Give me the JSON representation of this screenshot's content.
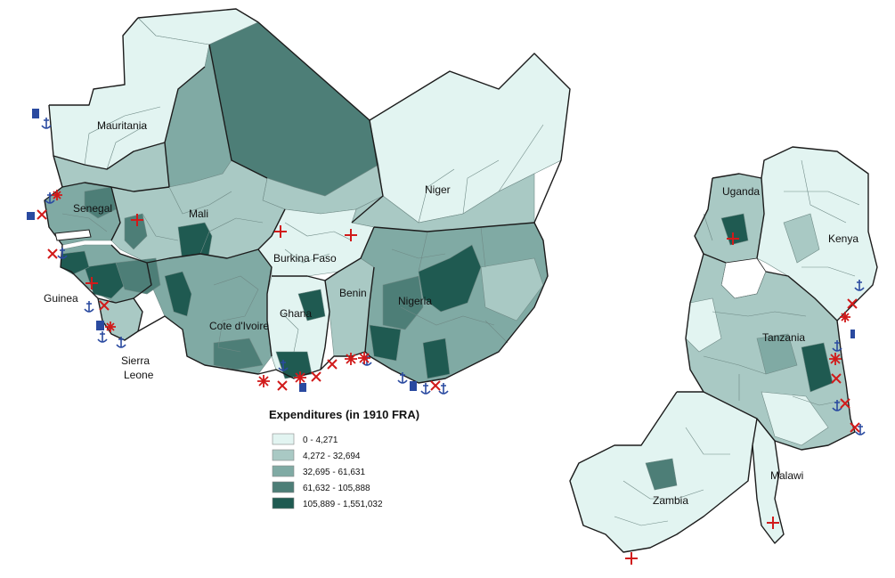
{
  "legend": {
    "title": "Expenditures (in 1910 FRA)",
    "classes": [
      {
        "label": "0 - 4,271",
        "color": "#e2f4f1"
      },
      {
        "label": "4,272 - 32,694",
        "color": "#a9c9c4"
      },
      {
        "label": "32,695 - 61,631",
        "color": "#80aaa4"
      },
      {
        "label": "61,632 - 105,888",
        "color": "#4d7e77"
      },
      {
        "label": "105,889 - 1,551,032",
        "color": "#1f5a51"
      }
    ]
  },
  "countries": {
    "mauritania": "Mauritania",
    "senegal": "Senegal",
    "mali": "Mali",
    "niger": "Niger",
    "guinea": "Guinea",
    "burkina_faso": "Burkina Faso",
    "benin": "Benin",
    "nigeria": "Nigeria",
    "cote_divoire": "Cote d'Ivoire",
    "ghana": "Ghana",
    "sierra": "Sierra",
    "leone": "Leone",
    "uganda": "Uganda",
    "kenya": "Kenya",
    "tanzania": "Tanzania",
    "malawi": "Malawi",
    "zambia": "Zambia"
  },
  "symbols": {
    "port_icon": "anchor-icon",
    "mission_icon": "red-cross-icon",
    "battle_icon": "red-x-icon",
    "star_icon": "red-asterisk-icon",
    "station_icon": "blue-rectangle-icon"
  }
}
